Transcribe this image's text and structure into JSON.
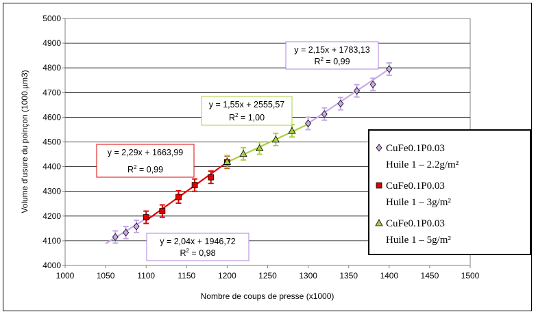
{
  "chart_data": {
    "type": "scatter",
    "xlabel": "Nombre de coups de presse (x1000)",
    "ylabel": "Volume d'usure du poinçon (1000.µm3)",
    "xlim": [
      1000,
      1500
    ],
    "ylim": [
      4000,
      5000
    ],
    "x_ticks": [
      "1000",
      "1050",
      "1100",
      "1150",
      "1200",
      "1250",
      "1300",
      "1350",
      "1400",
      "1450",
      "1500"
    ],
    "y_ticks": [
      "4000",
      "4100",
      "4200",
      "4300",
      "4400",
      "4500",
      "4600",
      "4700",
      "4800",
      "4900",
      "5000"
    ],
    "grid": true,
    "legend_position": "right",
    "series": [
      {
        "name_line1": "CuFe0.1P0.03",
        "name_line2": "Huile 1 – 2.2g/m²",
        "marker": "diamond",
        "color": "#c8a8e8",
        "line_color": "#c8a8e8",
        "points": [
          {
            "x": 1062,
            "y": 4115
          },
          {
            "x": 1075,
            "y": 4133
          },
          {
            "x": 1088,
            "y": 4158
          },
          {
            "x": 1300,
            "y": 4575
          },
          {
            "x": 1320,
            "y": 4613
          },
          {
            "x": 1340,
            "y": 4655
          },
          {
            "x": 1360,
            "y": 4707
          },
          {
            "x": 1380,
            "y": 4733
          },
          {
            "x": 1400,
            "y": 4795
          }
        ],
        "error": 25,
        "segments": [
          [
            1050,
            4088,
            1100,
            4190
          ],
          [
            1300,
            4575,
            1400,
            4795
          ]
        ]
      },
      {
        "name_line1": "CuFe0.1P0.03",
        "name_line2": "Huile 1 – 3g/m²",
        "marker": "square",
        "color": "#e00000",
        "line_color": "#e00000",
        "points": [
          {
            "x": 1100,
            "y": 4195
          },
          {
            "x": 1120,
            "y": 4220
          },
          {
            "x": 1140,
            "y": 4277
          },
          {
            "x": 1160,
            "y": 4325
          },
          {
            "x": 1180,
            "y": 4357
          },
          {
            "x": 1200,
            "y": 4418
          }
        ],
        "error": 25,
        "segments": [
          [
            1100,
            4182,
            1200,
            4418
          ]
        ]
      },
      {
        "name_line1": "CuFe0.1P0.03",
        "name_line2": "Huile 1 – 5g/m²",
        "marker": "triangle",
        "color": "#a8d040",
        "line_color": "#a8d040",
        "points": [
          {
            "x": 1200,
            "y": 4420
          },
          {
            "x": 1220,
            "y": 4452
          },
          {
            "x": 1240,
            "y": 4475
          },
          {
            "x": 1260,
            "y": 4510
          },
          {
            "x": 1280,
            "y": 4545
          }
        ],
        "error": 25,
        "segments": [
          [
            1200,
            4418,
            1300,
            4572
          ]
        ]
      }
    ],
    "annotations": [
      {
        "line1": "y = 2,15x + 1783,13",
        "r2": "R",
        "r2sup": "2",
        "r2val": " = 0,99",
        "border": "#b080e0"
      },
      {
        "line1": "y = 1,55x + 2555,57",
        "r2": "R",
        "r2sup": "2",
        "r2val": " = 1,00",
        "border": "#a8d040"
      },
      {
        "line1": "y = 2,29x + 1663,99",
        "r2": "R",
        "r2sup": "2",
        "r2val": " = 0,99",
        "border": "#e00000"
      },
      {
        "line1": "y = 2,04x + 1946,72",
        "r2": "R",
        "r2sup": "2",
        "r2val": " = 0,98",
        "border": "#b080e0"
      }
    ]
  }
}
